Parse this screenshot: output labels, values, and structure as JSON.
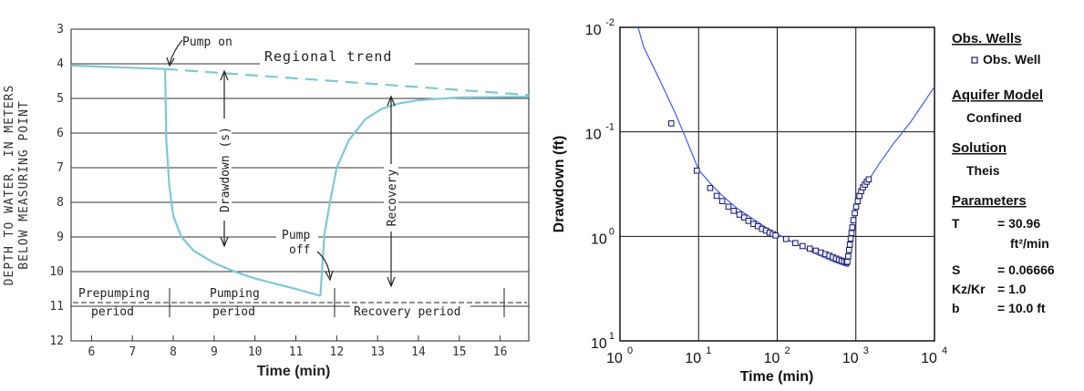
{
  "chart_data": [
    {
      "type": "line",
      "ylabel_lines": [
        "DEPTH TO WATER, IN METERS",
        "BELOW MEASURING POINT"
      ],
      "xlabel": "Time (min)",
      "x_ticks": [
        "6",
        "7",
        "8",
        "9",
        "10",
        "11",
        "12",
        "13",
        "14",
        "15",
        "16"
      ],
      "y_ticks": [
        "3",
        "4",
        "5",
        "6",
        "7",
        "8",
        "9",
        "10",
        "11",
        "12"
      ],
      "xlim": [
        5.5,
        16.7
      ],
      "ylim": [
        12,
        3
      ],
      "grid": "horizontal",
      "colors": {
        "line": "#7ec8d6",
        "ink": "#222222"
      },
      "series": [
        {
          "name": "",
          "x": [
            5.5,
            7.8
          ],
          "y": [
            4.05,
            4.15
          ]
        },
        {
          "name": "",
          "x": [
            7.8,
            7.83,
            7.9,
            8.0,
            8.2,
            8.5,
            9.0,
            9.5,
            10.0,
            10.5,
            11.0,
            11.6
          ],
          "y": [
            4.15,
            6.2,
            7.5,
            8.4,
            9.0,
            9.4,
            9.75,
            10.0,
            10.2,
            10.35,
            10.5,
            10.7
          ]
        },
        {
          "name": "",
          "x": [
            11.6,
            11.7,
            11.85,
            12.0,
            12.3,
            12.7,
            13.1,
            13.5,
            14.0,
            15.0,
            16.7
          ],
          "y": [
            10.7,
            8.9,
            7.9,
            7.0,
            6.2,
            5.6,
            5.3,
            5.15,
            5.05,
            4.97,
            4.95
          ]
        }
      ],
      "regional_trend": {
        "x": [
          7.8,
          16.7
        ],
        "y": [
          4.15,
          4.9
        ]
      },
      "annotations": {
        "pump_on": "Pump on",
        "regional_trend": "Regional trend",
        "drawdown": "Drawdown (s)",
        "pump_off_1": "Pump",
        "pump_off_2": "off",
        "recovery": "Recovery",
        "prepumping_1": "Prepumping",
        "prepumping_2": "period",
        "pumping_1": "Pumping",
        "pumping_2": "period",
        "recovery_period": "Recovery period"
      }
    },
    {
      "type": "scatter",
      "scale": "log-log",
      "xlabel": "Time (min)",
      "ylabel": "Drawdown (ft)",
      "xlim": [
        1,
        10000
      ],
      "ylim": [
        10,
        0.01
      ],
      "y_inverted": true,
      "grid": true,
      "x_ticks": [
        {
          "base": "10",
          "exp": "0"
        },
        {
          "base": "10",
          "exp": "1"
        },
        {
          "base": "10",
          "exp": "2"
        },
        {
          "base": "10",
          "exp": "3"
        },
        {
          "base": "10",
          "exp": "4"
        }
      ],
      "y_ticks": [
        {
          "base": "10",
          "exp": "-2"
        },
        {
          "base": "10",
          "exp": "-1"
        },
        {
          "base": "10",
          "exp": "0"
        },
        {
          "base": "10",
          "exp": "1"
        }
      ],
      "colors": {
        "curve": "#3b5bff",
        "marker": "#1a1a66"
      },
      "curve": {
        "x": [
          1.7,
          2,
          3,
          5,
          7,
          10,
          15,
          20,
          30,
          50,
          70,
          100,
          150,
          200,
          300,
          500,
          700,
          800,
          850,
          900,
          1000,
          1200,
          1500,
          2000,
          3000,
          5000,
          10000
        ],
        "y": [
          0.01,
          0.0154,
          0.0288,
          0.0653,
          0.119,
          0.231,
          0.328,
          0.407,
          0.53,
          0.687,
          0.812,
          0.946,
          1.115,
          1.246,
          1.456,
          1.726,
          1.892,
          1.95,
          1.25,
          0.75,
          0.5,
          0.36,
          0.28,
          0.2,
          0.13,
          0.08,
          0.037
        ]
      },
      "points": {
        "x": [
          4.5,
          9.5,
          14,
          17,
          20,
          24,
          28,
          33,
          38,
          43,
          50,
          57,
          64,
          72,
          80,
          88,
          95,
          130,
          170,
          210,
          260,
          310,
          360,
          410,
          460,
          510,
          560,
          610,
          660,
          710,
          760,
          780,
          800,
          820,
          840,
          860,
          880,
          900,
          930,
          970,
          1010,
          1060,
          1110,
          1170,
          1230,
          1300,
          1380,
          1460
        ],
        "y": [
          0.083,
          0.235,
          0.345,
          0.41,
          0.46,
          0.52,
          0.57,
          0.62,
          0.66,
          0.71,
          0.76,
          0.8,
          0.85,
          0.88,
          0.92,
          0.95,
          0.98,
          1.06,
          1.16,
          1.24,
          1.31,
          1.37,
          1.43,
          1.48,
          1.53,
          1.58,
          1.63,
          1.67,
          1.71,
          1.74,
          1.78,
          1.75,
          1.55,
          1.35,
          1.2,
          1.05,
          0.93,
          0.82,
          0.7,
          0.6,
          0.52,
          0.46,
          0.41,
          0.37,
          0.34,
          0.32,
          0.3,
          0.285
        ]
      }
    }
  ],
  "legend": {
    "obs_wells_title": "Obs. Wells",
    "obs_well_item": "Obs. Well",
    "aquifer_model_title": "Aquifer Model",
    "aquifer_model_value": "Confined",
    "solution_title": "Solution",
    "solution_value": "Theis",
    "parameters_title": "Parameters",
    "params": [
      {
        "key": "T",
        "value": "= 30.96"
      },
      {
        "key": "",
        "value": "ft²/min"
      },
      {
        "key": "S",
        "value": "= 0.06666"
      },
      {
        "key": "Kz/Kr",
        "value": "= 1.0"
      },
      {
        "key": "b",
        "value": "= 10.0 ft"
      }
    ]
  }
}
